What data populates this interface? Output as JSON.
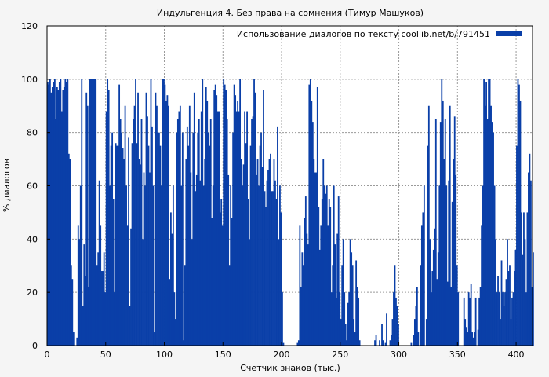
{
  "chart_data": {
    "type": "bar",
    "title": "Индульгенция 4. Без права на сомнения (Тимур Машуков)",
    "xlabel": "Счетчик знаков (тыс.)",
    "ylabel": "% диалогов",
    "xlim": [
      0,
      414
    ],
    "ylim": [
      0,
      120
    ],
    "xticks": [
      0,
      50,
      100,
      150,
      200,
      250,
      300,
      350,
      400
    ],
    "yticks": [
      0,
      20,
      40,
      60,
      80,
      100,
      120
    ],
    "grid": true,
    "legend_position": "top-right",
    "color": "#0a3fa8",
    "series": [
      {
        "name": "Использование диалогов по тексту coollib.net/b/791451",
        "x_start": 0,
        "x_step": 1,
        "values": [
          99,
          98,
          100,
          95,
          97,
          99,
          100,
          85,
          97,
          96,
          99,
          100,
          88,
          96,
          97,
          100,
          99,
          100,
          72,
          70,
          30,
          25,
          5,
          0,
          0,
          3,
          45,
          40,
          60,
          100,
          15,
          38,
          26,
          95,
          90,
          22,
          100,
          100,
          100,
          100,
          100,
          100,
          30,
          35,
          62,
          45,
          28,
          28,
          35,
          20,
          88,
          100,
          96,
          60,
          75,
          80,
          55,
          20,
          76,
          75,
          75,
          98,
          85,
          80,
          74,
          70,
          90,
          60,
          45,
          78,
          15,
          44,
          76,
          85,
          90,
          100,
          76,
          95,
          70,
          68,
          85,
          40,
          65,
          60,
          95,
          86,
          75,
          65,
          100,
          82,
          60,
          5,
          95,
          90,
          80,
          80,
          75,
          60,
          100,
          100,
          98,
          92,
          94,
          90,
          25,
          50,
          42,
          60,
          20,
          10,
          80,
          85,
          88,
          90,
          60,
          80,
          2,
          30,
          70,
          82,
          75,
          90,
          65,
          40,
          80,
          95,
          58,
          64,
          80,
          85,
          62,
          88,
          100,
          60,
          70,
          97,
          92,
          80,
          75,
          85,
          48,
          60,
          96,
          98,
          94,
          88,
          88,
          50,
          55,
          45,
          100,
          98,
          96,
          85,
          64,
          30,
          60,
          48,
          80,
          98,
          94,
          88,
          92,
          88,
          100,
          70,
          60,
          68,
          88,
          76,
          88,
          55,
          40,
          75,
          85,
          86,
          100,
          95,
          64,
          70,
          60,
          75,
          80,
          67,
          96,
          58,
          52,
          62,
          66,
          70,
          72,
          58,
          58,
          70,
          62,
          55,
          82,
          40,
          60,
          50,
          20,
          1,
          0,
          0,
          0,
          0,
          0,
          0,
          0,
          0,
          0,
          0,
          0,
          1,
          2,
          45,
          22,
          35,
          30,
          48,
          56,
          42,
          38,
          98,
          100,
          92,
          84,
          70,
          65,
          65,
          97,
          52,
          36,
          45,
          55,
          70,
          60,
          57,
          60,
          45,
          55,
          52,
          20,
          30,
          60,
          38,
          18,
          42,
          56,
          20,
          10,
          30,
          40,
          20,
          8,
          2,
          16,
          20,
          40,
          35,
          30,
          10,
          5,
          32,
          22,
          18,
          2,
          0,
          0,
          0,
          0,
          0,
          0,
          0,
          0,
          0,
          0,
          0,
          0,
          2,
          4,
          0,
          0,
          2,
          0,
          8,
          2,
          0,
          1,
          12,
          0,
          0,
          2,
          4,
          10,
          20,
          30,
          18,
          15,
          8,
          0,
          0,
          0,
          0,
          0,
          0,
          0,
          0,
          0,
          0,
          1,
          0,
          4,
          10,
          15,
          22,
          5,
          0,
          30,
          45,
          50,
          60,
          0,
          10,
          75,
          90,
          40,
          20,
          28,
          36,
          44,
          85,
          25,
          35,
          60,
          84,
          100,
          92,
          70,
          85,
          60,
          24,
          62,
          90,
          22,
          54,
          70,
          86,
          64,
          30,
          20,
          0,
          0,
          0,
          0,
          18,
          10,
          7,
          5,
          20,
          18,
          23,
          5,
          3,
          5,
          18,
          0,
          6,
          18,
          22,
          45,
          60,
          100,
          90,
          99,
          85,
          100,
          100,
          90,
          84,
          80,
          60,
          40,
          20,
          26,
          20,
          10,
          32,
          20,
          15,
          20,
          25,
          40,
          28,
          30,
          10,
          18,
          20,
          28,
          36,
          75,
          100,
          98,
          92,
          50,
          34,
          50,
          40,
          20,
          50,
          65,
          72,
          62,
          22,
          35
        ]
      }
    ]
  }
}
